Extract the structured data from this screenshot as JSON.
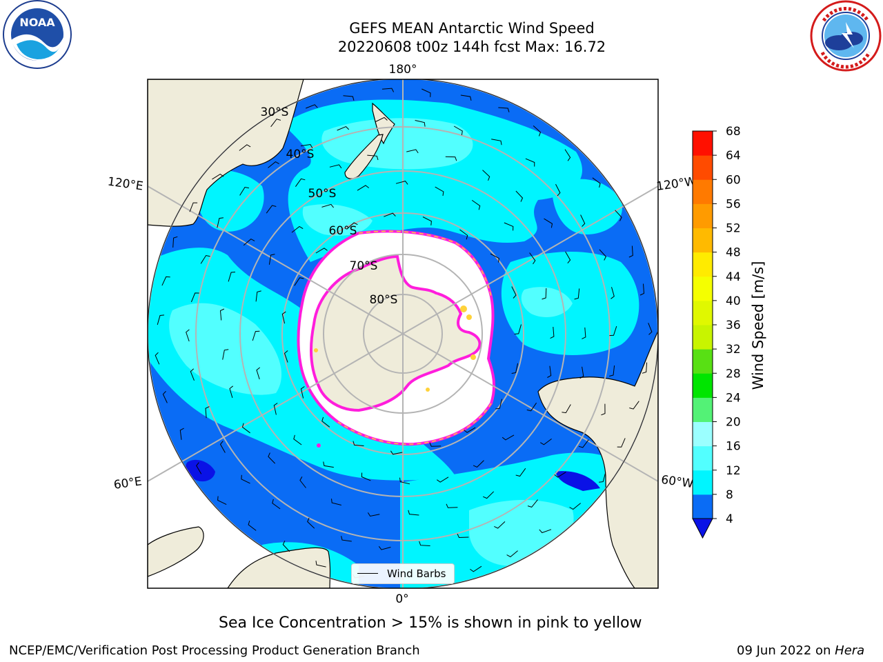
{
  "header": {
    "title_line1": "GEFS MEAN Antarctic Wind Speed",
    "title_line2": "20220608 t00z 144h fcst   Max: 16.72"
  },
  "logos": {
    "left": {
      "icon": "noaa-logo",
      "text": "NOAA"
    },
    "right": {
      "icon": "nws-logo"
    }
  },
  "map": {
    "projection": "south-polar-stereographic",
    "lon_labels": {
      "top": "180°",
      "bottom": "0°",
      "left_upper": "120°E",
      "left_lower": "60°E",
      "right_upper": "120°W",
      "right_lower": "60°W"
    },
    "lat_labels": [
      "30°S",
      "40°S",
      "50°S",
      "60°S",
      "70°S",
      "80°S"
    ],
    "legend_label": "Wind Barbs",
    "colors": {
      "ocean_4_8": "#0a6cf5",
      "ocean_8_12": "#00f5ff",
      "ocean_12_16": "#52ffff",
      "ocean_16_20": "#9bffff",
      "land": "#efecda",
      "sea_ice": "#ffffff",
      "ice_edge": "#ff1ddc",
      "ice_edge_yellow": "#ffd23a",
      "grid": "#b4b4b4"
    }
  },
  "colorbar": {
    "label": "Wind Speed [m/s]",
    "ticks": [
      "4",
      "8",
      "12",
      "16",
      "20",
      "24",
      "28",
      "32",
      "36",
      "40",
      "44",
      "48",
      "52",
      "56",
      "60",
      "64",
      "68"
    ],
    "colors": [
      "#0a6cf5",
      "#00f5ff",
      "#52ffff",
      "#9bffff",
      "#53f276",
      "#00e500",
      "#58e014",
      "#c8f400",
      "#e0f800",
      "#f5ff00",
      "#ffeb00",
      "#ffba00",
      "#ff9b00",
      "#ff7a00",
      "#ff4b00",
      "#ff1000"
    ],
    "under_color": "#0a12e6"
  },
  "caption": "Sea Ice Concentration > 15% is shown in pink to yellow",
  "footer": {
    "left": "NCEP/EMC/Verification Post Processing Product Generation Branch",
    "right_date": "09 Jun 2022 on ",
    "right_machine": "Hera"
  }
}
